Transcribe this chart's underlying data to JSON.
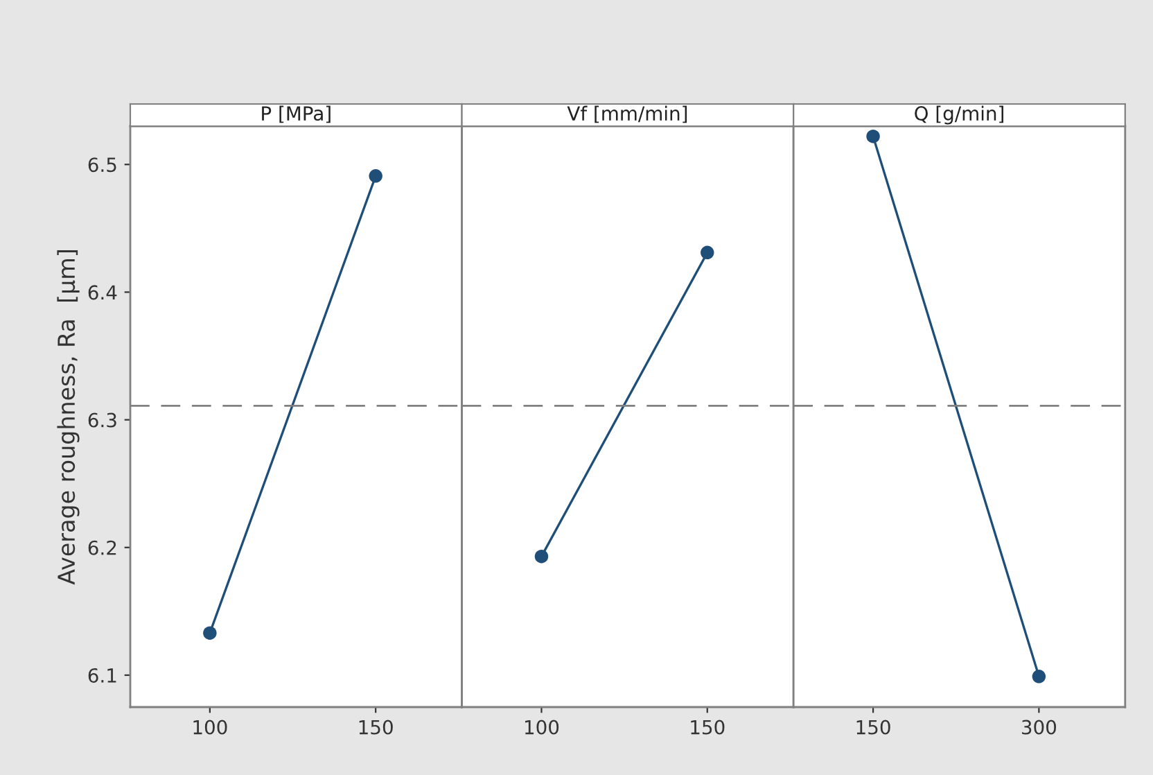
{
  "chart_data": [
    {
      "type": "line",
      "title": "P [MPa]",
      "ylabel": "Average roughness, Ra  [µm]",
      "categories": [
        "100",
        "150"
      ],
      "series": [
        {
          "color": "#1f4e79",
          "values": [
            6.133,
            6.491
          ]
        }
      ],
      "ylim": [
        6.075,
        6.53
      ],
      "yticks": [
        6.1,
        6.2,
        6.3,
        6.4,
        6.5
      ],
      "marker": "circle",
      "line_style": "solid",
      "grid": false,
      "ref_lines": [
        {
          "axis": "y",
          "value": 6.311,
          "color": "#808080",
          "line_style": "dashed"
        }
      ]
    },
    {
      "type": "line",
      "title": "Vf [mm/min]",
      "categories": [
        "100",
        "150"
      ],
      "series": [
        {
          "color": "#1f4e79",
          "values": [
            6.193,
            6.431
          ]
        }
      ],
      "ylim": [
        6.075,
        6.53
      ],
      "tick_labels": "x",
      "marker": "circle",
      "line_style": "solid",
      "grid": false,
      "ref_lines": [
        {
          "axis": "y",
          "value": 6.311,
          "color": "#808080",
          "line_style": "dashed"
        }
      ]
    },
    {
      "type": "line",
      "title": "Q [g/min]",
      "categories": [
        "150",
        "300"
      ],
      "series": [
        {
          "color": "#1f4e79",
          "values": [
            6.522,
            6.099
          ]
        }
      ],
      "ylim": [
        6.075,
        6.53
      ],
      "tick_labels": "x",
      "marker": "circle",
      "line_style": "solid",
      "grid": false,
      "ref_lines": [
        {
          "axis": "y",
          "value": 6.311,
          "color": "#808080",
          "line_style": "dashed"
        }
      ]
    }
  ]
}
